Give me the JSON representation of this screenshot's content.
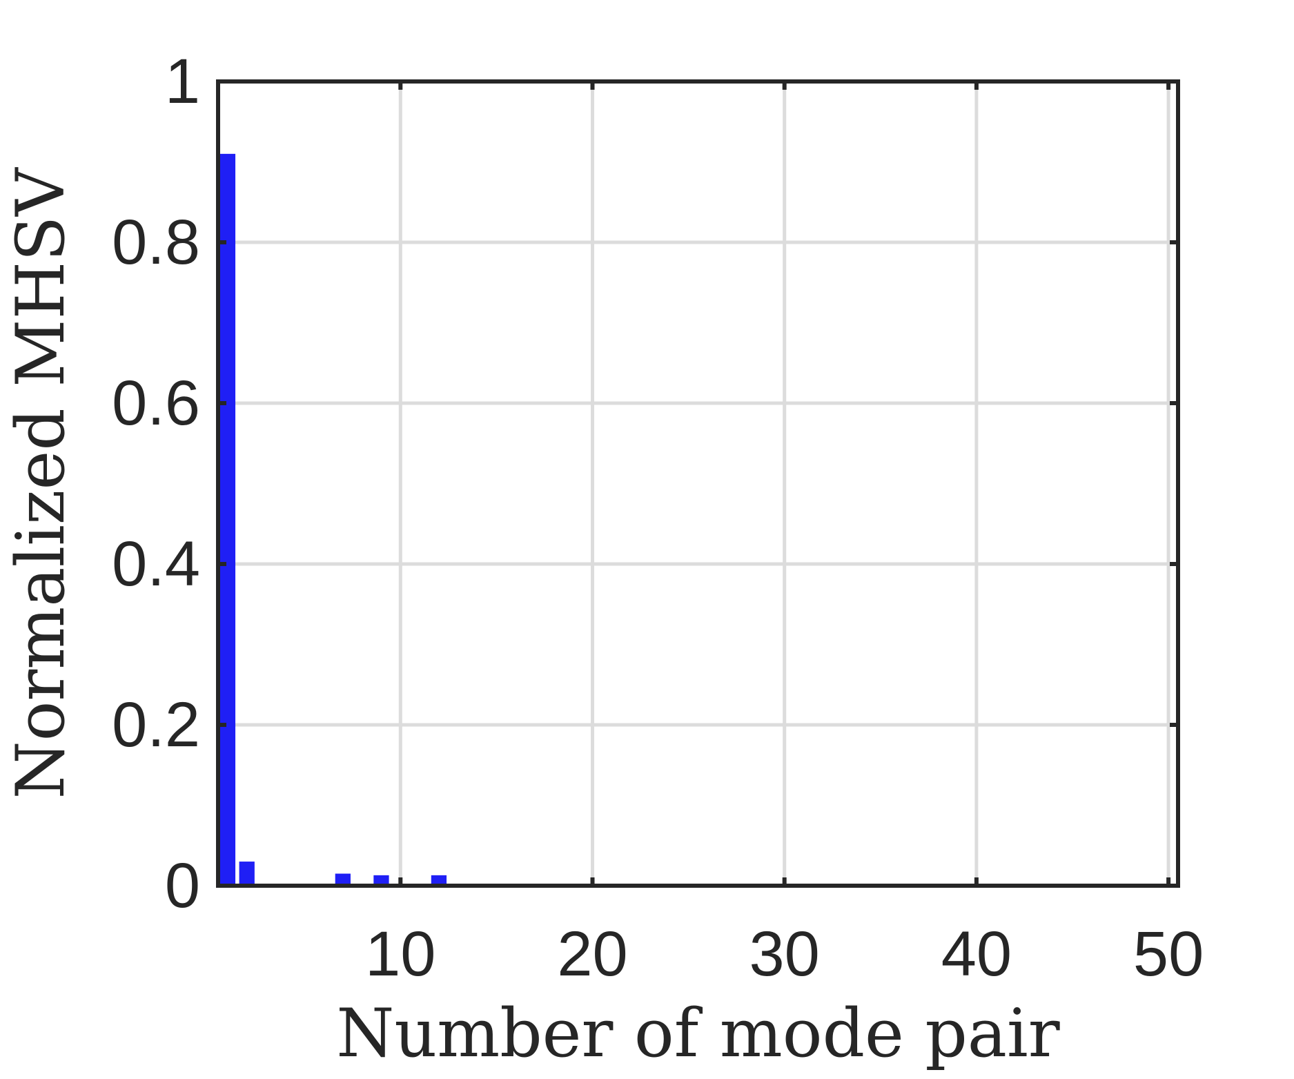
{
  "chart_data": {
    "type": "bar",
    "title": "",
    "xlabel": "Number of mode pair",
    "ylabel": "Normalized MHSV",
    "xlim": [
      0.5,
      50.5
    ],
    "ylim": [
      0,
      1
    ],
    "xticks": [
      10,
      20,
      30,
      40,
      50
    ],
    "yticks": [
      0,
      0.2,
      0.4,
      0.6,
      0.8,
      1
    ],
    "xtick_labels": [
      "10",
      "20",
      "30",
      "40",
      "50"
    ],
    "ytick_labels": [
      "0",
      "0.2",
      "0.4",
      "0.6",
      "0.8",
      "1"
    ],
    "grid": true,
    "legend": "none",
    "x": [
      1,
      2,
      3,
      4,
      5,
      6,
      7,
      8,
      9,
      10,
      11,
      12,
      13,
      14,
      15,
      16,
      17,
      18,
      19,
      20,
      21,
      22,
      23,
      24,
      25,
      26,
      27,
      28,
      29,
      30,
      31,
      32,
      33,
      34,
      35,
      36,
      37,
      38,
      39,
      40,
      41,
      42,
      43,
      44,
      45,
      46,
      47,
      48,
      49,
      50
    ],
    "values": [
      0.91,
      0.03,
      0,
      0,
      0,
      0,
      0.015,
      0,
      0.013,
      0,
      0,
      0.013,
      0,
      0.001,
      0,
      0.002,
      0,
      0.001,
      0,
      0,
      0,
      0,
      0.001,
      0,
      0.001,
      0,
      0.001,
      0,
      0,
      0,
      0,
      0,
      0,
      0,
      0,
      0,
      0,
      0,
      0,
      0,
      0,
      0,
      0,
      0,
      0,
      0,
      0,
      0,
      0,
      0
    ],
    "colors": {
      "bar": "#1f1ff5",
      "axis": "#262626",
      "grid": "#dcdcdc"
    }
  }
}
